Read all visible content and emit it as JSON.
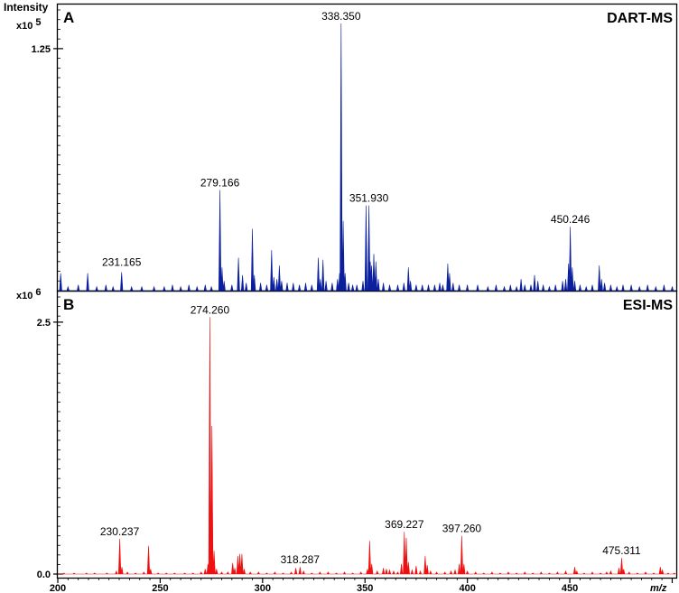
{
  "chart_data": [
    {
      "panel": "A",
      "title": "DART-MS",
      "type": "line",
      "ylabel": "Intensity",
      "yscale_label": "x10 5",
      "yticks": [
        {
          "value": 1.25,
          "label": "1.25"
        }
      ],
      "ylim": [
        0,
        1.45
      ],
      "xlim": [
        200,
        502
      ],
      "color": "#0a1f9e",
      "annotations": [
        {
          "x": 231.165,
          "y": 0.11,
          "label": "231.165"
        },
        {
          "x": 279.166,
          "y": 0.52,
          "label": "279.166"
        },
        {
          "x": 338.35,
          "y": 1.38,
          "label": "338.350"
        },
        {
          "x": 351.93,
          "y": 0.44,
          "label": "351.930"
        },
        {
          "x": 450.246,
          "y": 0.33,
          "label": "450.246"
        }
      ],
      "peaks": [
        [
          201.4,
          0.09
        ],
        [
          205,
          0.02
        ],
        [
          210,
          0.03
        ],
        [
          214.6,
          0.09
        ],
        [
          219,
          0.02
        ],
        [
          223.5,
          0.03
        ],
        [
          227,
          0.02
        ],
        [
          231.165,
          0.095
        ],
        [
          236,
          0.02
        ],
        [
          241,
          0.02
        ],
        [
          247,
          0.02
        ],
        [
          252,
          0.02
        ],
        [
          256,
          0.03
        ],
        [
          260,
          0.02
        ],
        [
          264,
          0.03
        ],
        [
          268,
          0.02
        ],
        [
          272,
          0.03
        ],
        [
          275,
          0.02
        ],
        [
          279.166,
          0.52
        ],
        [
          280.2,
          0.12
        ],
        [
          281.2,
          0.05
        ],
        [
          285,
          0.03
        ],
        [
          288.2,
          0.17
        ],
        [
          290.2,
          0.08
        ],
        [
          292,
          0.04
        ],
        [
          295,
          0.32
        ],
        [
          296,
          0.08
        ],
        [
          299,
          0.04
        ],
        [
          302,
          0.03
        ],
        [
          304.4,
          0.21
        ],
        [
          305.5,
          0.07
        ],
        [
          307,
          0.06
        ],
        [
          308.2,
          0.13
        ],
        [
          309.3,
          0.05
        ],
        [
          312,
          0.04
        ],
        [
          315,
          0.04
        ],
        [
          318,
          0.03
        ],
        [
          321,
          0.04
        ],
        [
          324,
          0.03
        ],
        [
          327.2,
          0.17
        ],
        [
          328.2,
          0.06
        ],
        [
          329.5,
          0.16
        ],
        [
          331,
          0.05
        ],
        [
          334,
          0.04
        ],
        [
          336.6,
          0.06
        ],
        [
          337.6,
          0.09
        ],
        [
          338.35,
          1.38
        ],
        [
          339.35,
          0.36
        ],
        [
          340.3,
          0.09
        ],
        [
          342,
          0.04
        ],
        [
          344,
          0.03
        ],
        [
          346,
          0.03
        ],
        [
          349,
          0.05
        ],
        [
          350.5,
          0.44
        ],
        [
          351.93,
          0.44
        ],
        [
          352.6,
          0.15
        ],
        [
          353.2,
          0.13
        ],
        [
          354.3,
          0.19
        ],
        [
          355.3,
          0.15
        ],
        [
          356.5,
          0.06
        ],
        [
          359,
          0.04
        ],
        [
          362,
          0.03
        ],
        [
          366,
          0.03
        ],
        [
          369,
          0.04
        ],
        [
          371.2,
          0.12
        ],
        [
          372.2,
          0.05
        ],
        [
          375,
          0.03
        ],
        [
          378,
          0.03
        ],
        [
          381,
          0.03
        ],
        [
          384,
          0.03
        ],
        [
          386.5,
          0.04
        ],
        [
          388,
          0.03
        ],
        [
          390.4,
          0.14
        ],
        [
          391.3,
          0.09
        ],
        [
          393,
          0.04
        ],
        [
          396,
          0.03
        ],
        [
          400,
          0.03
        ],
        [
          405,
          0.03
        ],
        [
          410,
          0.02
        ],
        [
          414,
          0.03
        ],
        [
          418,
          0.02
        ],
        [
          421,
          0.03
        ],
        [
          424,
          0.02
        ],
        [
          426.2,
          0.06
        ],
        [
          428,
          0.03
        ],
        [
          431,
          0.03
        ],
        [
          432.8,
          0.08
        ],
        [
          434.4,
          0.05
        ],
        [
          437,
          0.03
        ],
        [
          440,
          0.02
        ],
        [
          443,
          0.03
        ],
        [
          446.5,
          0.05
        ],
        [
          448,
          0.06
        ],
        [
          449.4,
          0.14
        ],
        [
          450.246,
          0.33
        ],
        [
          451.2,
          0.12
        ],
        [
          452.4,
          0.05
        ],
        [
          455,
          0.03
        ],
        [
          458,
          0.02
        ],
        [
          461,
          0.03
        ],
        [
          464.4,
          0.13
        ],
        [
          465.5,
          0.06
        ],
        [
          467,
          0.04
        ],
        [
          470,
          0.03
        ],
        [
          473,
          0.02
        ],
        [
          476,
          0.03
        ],
        [
          480,
          0.03
        ],
        [
          484,
          0.02
        ],
        [
          488,
          0.03
        ],
        [
          492,
          0.02
        ],
        [
          496,
          0.03
        ],
        [
          500,
          0.02
        ]
      ]
    },
    {
      "panel": "B",
      "title": "ESI-MS",
      "type": "line",
      "yscale_label": "x10 6",
      "yticks": [
        {
          "value": 0.0,
          "label": "0.0"
        },
        {
          "value": 2.5,
          "label": "2.5"
        }
      ],
      "ylim": [
        0,
        2.75
      ],
      "xlim": [
        200,
        502
      ],
      "xlabel": "m/z",
      "xticks": [
        200,
        250,
        300,
        350,
        400,
        450
      ],
      "color": "#ee1111",
      "annotations": [
        {
          "x": 230.237,
          "y": 0.35,
          "label": "230.237"
        },
        {
          "x": 274.26,
          "y": 2.55,
          "label": "274.260"
        },
        {
          "x": 318.287,
          "y": 0.07,
          "label": "318.287"
        },
        {
          "x": 369.227,
          "y": 0.42,
          "label": "369.227"
        },
        {
          "x": 397.26,
          "y": 0.38,
          "label": "397.260"
        },
        {
          "x": 475.311,
          "y": 0.16,
          "label": "475.311"
        }
      ],
      "peaks": [
        [
          203,
          0.01
        ],
        [
          208,
          0.01
        ],
        [
          214,
          0.01
        ],
        [
          218,
          0.01
        ],
        [
          224,
          0.01
        ],
        [
          228.6,
          0.03
        ],
        [
          230.237,
          0.35
        ],
        [
          231.3,
          0.07
        ],
        [
          234,
          0.02
        ],
        [
          238,
          0.01
        ],
        [
          242,
          0.02
        ],
        [
          244.3,
          0.28
        ],
        [
          245.3,
          0.05
        ],
        [
          249,
          0.01
        ],
        [
          253,
          0.01
        ],
        [
          257,
          0.01
        ],
        [
          262,
          0.01
        ],
        [
          266,
          0.01
        ],
        [
          270,
          0.02
        ],
        [
          272,
          0.05
        ],
        [
          273.3,
          0.1
        ],
        [
          274.26,
          2.55
        ],
        [
          275.26,
          1.47
        ],
        [
          276.3,
          0.23
        ],
        [
          277.5,
          0.05
        ],
        [
          280,
          0.02
        ],
        [
          283,
          0.02
        ],
        [
          285.4,
          0.11
        ],
        [
          286.4,
          0.06
        ],
        [
          287.9,
          0.18
        ],
        [
          288.9,
          0.2
        ],
        [
          289.9,
          0.2
        ],
        [
          291,
          0.05
        ],
        [
          294,
          0.02
        ],
        [
          298,
          0.02
        ],
        [
          302,
          0.01
        ],
        [
          306,
          0.02
        ],
        [
          310,
          0.01
        ],
        [
          314,
          0.02
        ],
        [
          316.2,
          0.06
        ],
        [
          318.287,
          0.07
        ],
        [
          320,
          0.03
        ],
        [
          324,
          0.01
        ],
        [
          328,
          0.02
        ],
        [
          332,
          0.02
        ],
        [
          336,
          0.01
        ],
        [
          340,
          0.02
        ],
        [
          344,
          0.01
        ],
        [
          348,
          0.02
        ],
        [
          351.2,
          0.05
        ],
        [
          352.3,
          0.33
        ],
        [
          353.3,
          0.1
        ],
        [
          356,
          0.03
        ],
        [
          359,
          0.06
        ],
        [
          360.5,
          0.05
        ],
        [
          362,
          0.04
        ],
        [
          364,
          0.03
        ],
        [
          366,
          0.02
        ],
        [
          367.8,
          0.1
        ],
        [
          369.227,
          0.42
        ],
        [
          370.2,
          0.36
        ],
        [
          371.2,
          0.12
        ],
        [
          373,
          0.04
        ],
        [
          375,
          0.08
        ],
        [
          377,
          0.03
        ],
        [
          379.4,
          0.18
        ],
        [
          380.4,
          0.09
        ],
        [
          382,
          0.03
        ],
        [
          385,
          0.02
        ],
        [
          389,
          0.02
        ],
        [
          392,
          0.03
        ],
        [
          394,
          0.04
        ],
        [
          396,
          0.1
        ],
        [
          397.26,
          0.38
        ],
        [
          398.3,
          0.1
        ],
        [
          400,
          0.03
        ],
        [
          404,
          0.02
        ],
        [
          408,
          0.01
        ],
        [
          412,
          0.02
        ],
        [
          416,
          0.01
        ],
        [
          420,
          0.02
        ],
        [
          424,
          0.01
        ],
        [
          428,
          0.02
        ],
        [
          432,
          0.01
        ],
        [
          436,
          0.02
        ],
        [
          440,
          0.01
        ],
        [
          444,
          0.02
        ],
        [
          448,
          0.03
        ],
        [
          452.4,
          0.07
        ],
        [
          453.4,
          0.03
        ],
        [
          457,
          0.01
        ],
        [
          461,
          0.02
        ],
        [
          465,
          0.01
        ],
        [
          468,
          0.02
        ],
        [
          470,
          0.03
        ],
        [
          474,
          0.06
        ],
        [
          475.311,
          0.16
        ],
        [
          476.3,
          0.05
        ],
        [
          479,
          0.02
        ],
        [
          483,
          0.01
        ],
        [
          487,
          0.02
        ],
        [
          491,
          0.01
        ],
        [
          494.2,
          0.07
        ],
        [
          495.2,
          0.04
        ],
        [
          498,
          0.01
        ],
        [
          501,
          0.01
        ]
      ]
    }
  ],
  "labels": {
    "intensity": "Intensity",
    "x10a": "x10",
    "exp_a": "5",
    "x10b": "x10",
    "exp_b": "6",
    "xlabel": "m/z"
  }
}
